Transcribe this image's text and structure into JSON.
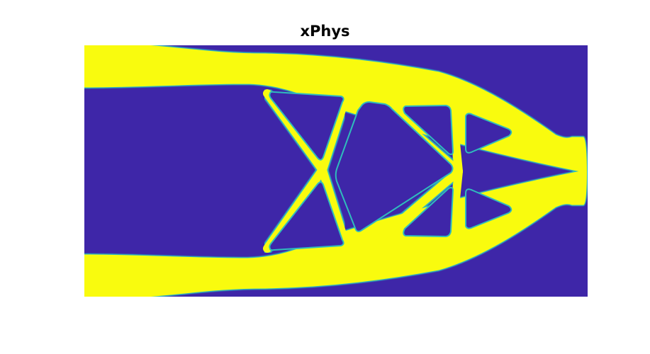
{
  "chart_data": {
    "type": "heatmap",
    "title": "xPhys",
    "xlabel": "",
    "ylabel": "",
    "axes_visible": false,
    "grid": false,
    "legend": "none",
    "colormap": "parula",
    "value_range": [
      0,
      1
    ],
    "colors": {
      "void": "#3E26A8",
      "solid": "#F9FB0E",
      "edge": "#2FBCBC"
    }
  }
}
